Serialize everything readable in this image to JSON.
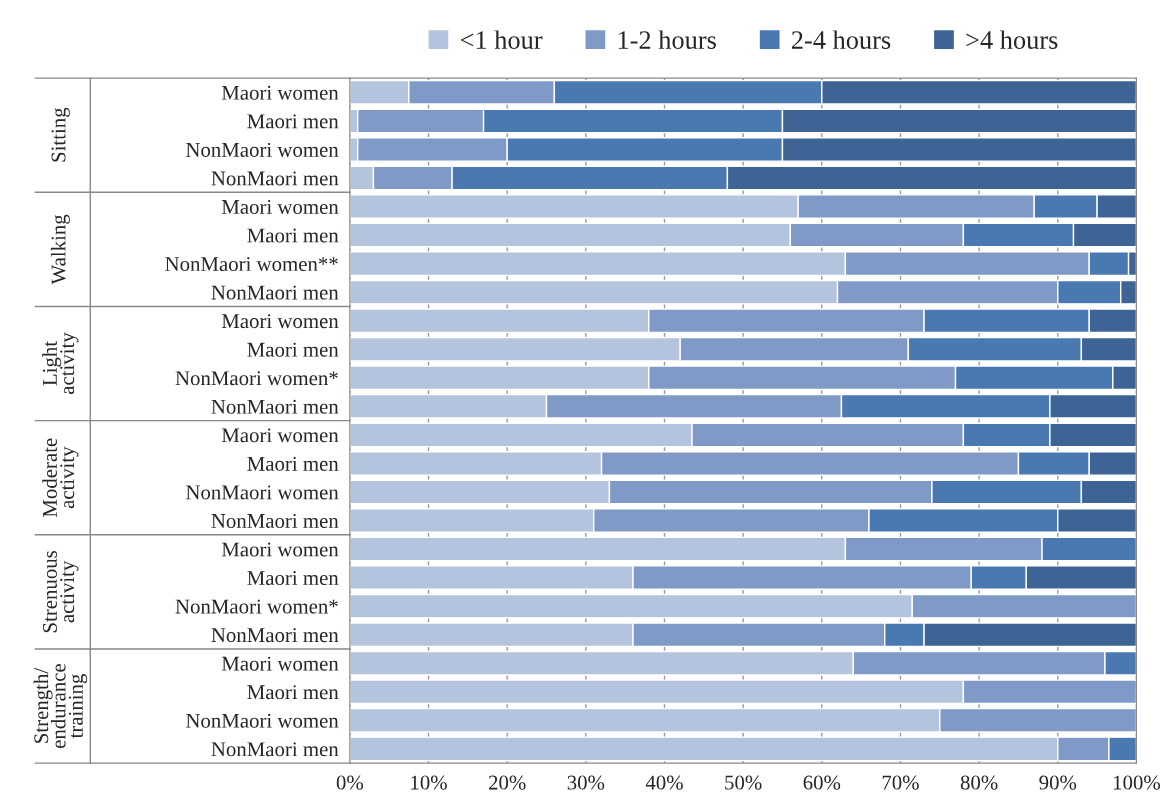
{
  "chart_data": {
    "type": "bar",
    "orientation": "horizontal",
    "stacked": true,
    "categories": [
      "Maori women",
      "Maori men",
      "NonMaori women",
      "NonMaori men",
      "Maori women",
      "Maori men",
      "NonMaori women**",
      "NonMaori men",
      "Maori women",
      "Maori men",
      "NonMaori women*",
      "NonMaori men",
      "Maori women",
      "Maori men",
      "NonMaori women",
      "NonMaori men",
      "Maori women",
      "Maori men",
      "NonMaori women*",
      "NonMaori men",
      "Maori women",
      "Maori men",
      "NonMaori women",
      "NonMaori men"
    ],
    "series": [
      {
        "name": "<1 hour",
        "color": "#b4c3de",
        "values": [
          7.5,
          1,
          1,
          3,
          57,
          56,
          63,
          62,
          38,
          42,
          38,
          25,
          43.5,
          32,
          33,
          31,
          63,
          36,
          71.5,
          36,
          64,
          78,
          75,
          90
        ]
      },
      {
        "name": "1-2 hours",
        "color": "#7f9ac6",
        "values": [
          18.5,
          16,
          19,
          10,
          30,
          22,
          31,
          28,
          35,
          29,
          39,
          37.5,
          34.5,
          53,
          41,
          35,
          25,
          43,
          28.5,
          32,
          32,
          22,
          25,
          6.5
        ]
      },
      {
        "name": "2-4 hours",
        "color": "#4a78b0",
        "values": [
          34,
          38,
          35,
          35,
          8,
          14,
          5,
          8,
          21,
          22,
          20,
          26.5,
          11,
          9,
          19,
          24,
          12,
          7,
          null,
          5,
          4,
          null,
          null,
          3.5
        ]
      },
      {
        "name": ">4 hours",
        "color": "#3d6494",
        "values": [
          40,
          45,
          45,
          52,
          5,
          8,
          1,
          2,
          6,
          7,
          3,
          11,
          11,
          6,
          7,
          10,
          null,
          14,
          null,
          27,
          null,
          null,
          null,
          null
        ]
      }
    ],
    "xlim": [
      0,
      100
    ],
    "xticks": [
      {
        "value": 0,
        "label": "0%"
      },
      {
        "value": 10,
        "label": "10%"
      },
      {
        "value": 20,
        "label": "20%"
      },
      {
        "value": 30,
        "label": "30%"
      },
      {
        "value": 40,
        "label": "40%"
      },
      {
        "value": 50,
        "label": "50%"
      },
      {
        "value": 60,
        "label": "60%"
      },
      {
        "value": 70,
        "label": "70%"
      },
      {
        "value": 80,
        "label": "80%"
      },
      {
        "value": 90,
        "label": "90%"
      },
      {
        "value": 100,
        "label": "100%"
      }
    ],
    "annotations": [
      "Sitting",
      "Walking",
      "Light\nactivity",
      "Moderate\nactivity",
      "Strenuous\nactivity",
      "Strength/\nendurance\ntraining"
    ],
    "grid": "x",
    "legend": "top"
  }
}
